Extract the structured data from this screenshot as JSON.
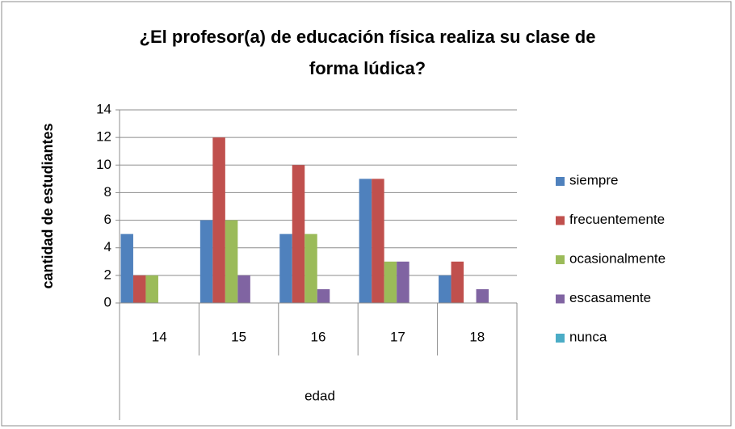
{
  "chart_data": {
    "type": "bar",
    "title": [
      "¿El profesor(a) de educación física realiza su clase de",
      "forma lúdica?"
    ],
    "y_label": "cantidad de estudiantes",
    "x_label": "edad",
    "categories": [
      "14",
      "15",
      "16",
      "17",
      "18"
    ],
    "series": [
      {
        "name": "siempre",
        "color": "#4f81bd",
        "values": [
          5,
          6,
          5,
          9,
          2
        ]
      },
      {
        "name": "frecuentemente",
        "color": "#c0504d",
        "values": [
          2,
          12,
          10,
          9,
          3
        ]
      },
      {
        "name": "ocasionalmente",
        "color": "#9bbb59",
        "values": [
          2,
          6,
          5,
          3,
          0
        ]
      },
      {
        "name": "escasamente",
        "color": "#8064a2",
        "values": [
          0,
          2,
          1,
          3,
          1
        ]
      },
      {
        "name": "nunca",
        "color": "#4bacc6",
        "values": [
          0,
          0,
          0,
          0,
          0
        ]
      }
    ],
    "ylim": [
      0,
      14
    ],
    "yticks": [
      0,
      2,
      4,
      6,
      8,
      10,
      12,
      14
    ],
    "grid": true,
    "legend": "right"
  }
}
